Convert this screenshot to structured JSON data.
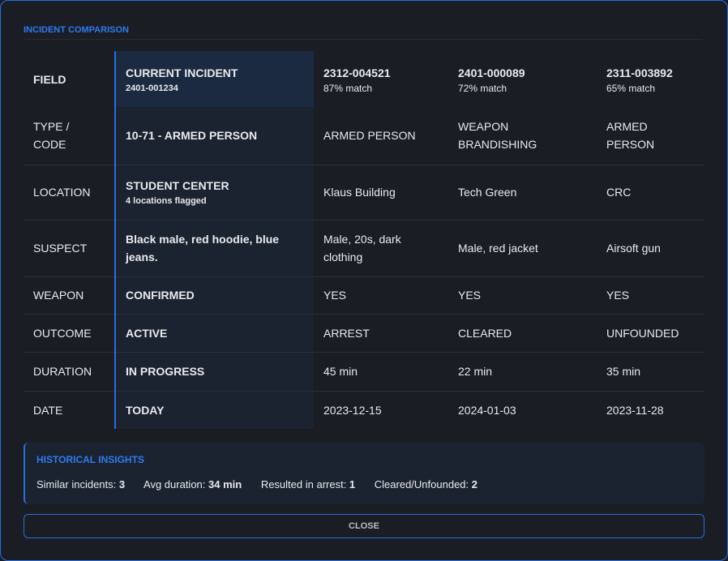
{
  "title": "INCIDENT COMPARISON",
  "header": {
    "field": "FIELD",
    "current": "CURRENT INCIDENT",
    "current_id": "2401-001234",
    "others": [
      {
        "id": "2312-004521",
        "match": "87% match"
      },
      {
        "id": "2401-000089",
        "match": "72% match"
      },
      {
        "id": "2311-003892",
        "match": "65% match"
      }
    ]
  },
  "rows": [
    {
      "field": "TYPE / CODE",
      "current": "10-71 - ARMED PERSON",
      "values": [
        "ARMED PERSON",
        "WEAPON BRANDISHING",
        "ARMED PERSON"
      ]
    },
    {
      "field": "LOCATION",
      "current": "STUDENT CENTER",
      "current_sub": "4 locations flagged",
      "values": [
        "Klaus Building",
        "Tech Green",
        "CRC"
      ]
    },
    {
      "field": "SUSPECT",
      "current": "Black male, red hoodie, blue jeans.",
      "values": [
        "Male, 20s, dark clothing",
        "Male, red jacket",
        "Airsoft gun"
      ]
    },
    {
      "field": "WEAPON",
      "current": "CONFIRMED",
      "values": [
        "YES",
        "YES",
        "YES"
      ]
    },
    {
      "field": "OUTCOME",
      "current": "ACTIVE",
      "values": [
        "ARREST",
        "CLEARED",
        "UNFOUNDED"
      ]
    },
    {
      "field": "DURATION",
      "current": "IN PROGRESS",
      "values": [
        "45 min",
        "22 min",
        "35 min"
      ]
    },
    {
      "field": "DATE",
      "current": "TODAY",
      "values": [
        "2023-12-15",
        "2024-01-03",
        "2023-11-28"
      ]
    }
  ],
  "insights": {
    "title": "HISTORICAL INSIGHTS",
    "stats": [
      {
        "label": "Similar incidents: ",
        "value": "3"
      },
      {
        "label": "Avg duration: ",
        "value": "34 min"
      },
      {
        "label": "Resulted in arrest: ",
        "value": "1"
      },
      {
        "label": "Cleared/Unfounded: ",
        "value": "2"
      }
    ]
  },
  "close_label": "CLOSE",
  "colors": {
    "accent": "#2a6ee0",
    "background": "#1a1d24"
  }
}
